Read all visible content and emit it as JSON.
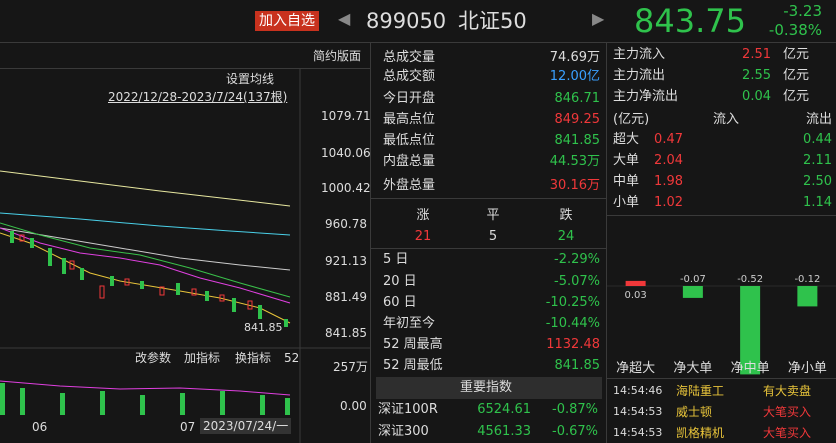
{
  "header": {
    "add_button": "加入自选",
    "code": "899050",
    "name": "北证50",
    "price": "843.75",
    "change": "-3.23",
    "change_pct": "-0.38%"
  },
  "chart": {
    "layout_button": "简约版面",
    "ma_settings": "设置均线",
    "date_range": "2022/12/28-2023/7/24(137根)",
    "price_axis": [
      "1079.71",
      "1040.06",
      "1000.42",
      "960.78",
      "921.13",
      "881.49",
      "841.85"
    ],
    "last_label": "841.85",
    "tools": [
      "改参数",
      "加指标",
      "换指标"
    ],
    "volume_period": "52",
    "volume_axis": [
      "257万",
      "0.00"
    ],
    "x_labels": [
      "06",
      "07",
      "2023/07/24/一"
    ]
  },
  "stats": {
    "rows": [
      [
        "总成交量",
        "74.69万"
      ],
      [
        "总成交额",
        "12.00亿"
      ],
      [
        "今日开盘",
        "846.71"
      ],
      [
        "最高点位",
        "849.25"
      ],
      [
        "最低点位",
        "841.85"
      ],
      [
        "内盘总量",
        "44.53万"
      ],
      [
        "外盘总量",
        "30.16万"
      ]
    ],
    "breadth": {
      "labels": [
        "涨",
        "平",
        "跌"
      ],
      "values": [
        "21",
        "5",
        "24"
      ]
    },
    "periods": [
      [
        "5 日",
        "-2.29%"
      ],
      [
        "20 日",
        "-5.07%"
      ],
      [
        "60 日",
        "-10.25%"
      ],
      [
        "年初至今",
        "-10.44%"
      ],
      [
        "52 周最高",
        "1132.48"
      ],
      [
        "52 周最低",
        "841.85"
      ]
    ]
  },
  "indices": {
    "title": "重要指数",
    "rows": [
      [
        "深证100R",
        "6524.61",
        "-0.87%"
      ],
      [
        "深证300",
        "4561.33",
        "-0.67%"
      ]
    ]
  },
  "fund_flow": {
    "rows": [
      [
        "主力流入",
        "2.51",
        "亿元"
      ],
      [
        "主力流出",
        "2.55",
        "亿元"
      ],
      [
        "主力净流出",
        "0.04",
        "亿元"
      ]
    ],
    "headers": [
      "(亿元)",
      "流入",
      "流出"
    ],
    "orders": [
      [
        "超大",
        "0.47",
        "0.44"
      ],
      [
        "大单",
        "2.04",
        "2.11"
      ],
      [
        "中单",
        "1.98",
        "2.50"
      ],
      [
        "小单",
        "1.02",
        "1.14"
      ]
    ],
    "net": {
      "categories": [
        "净超大",
        "净大单",
        "净中单",
        "净小单"
      ],
      "values": [
        0.03,
        -0.07,
        -0.52,
        -0.12
      ]
    }
  },
  "ticker": [
    [
      "14:54:46",
      "海陆重工",
      "有大卖盘"
    ],
    [
      "14:54:53",
      "威士顿",
      "大笔买入"
    ],
    [
      "14:54:53",
      "凯格精机",
      "大笔买入"
    ]
  ]
}
